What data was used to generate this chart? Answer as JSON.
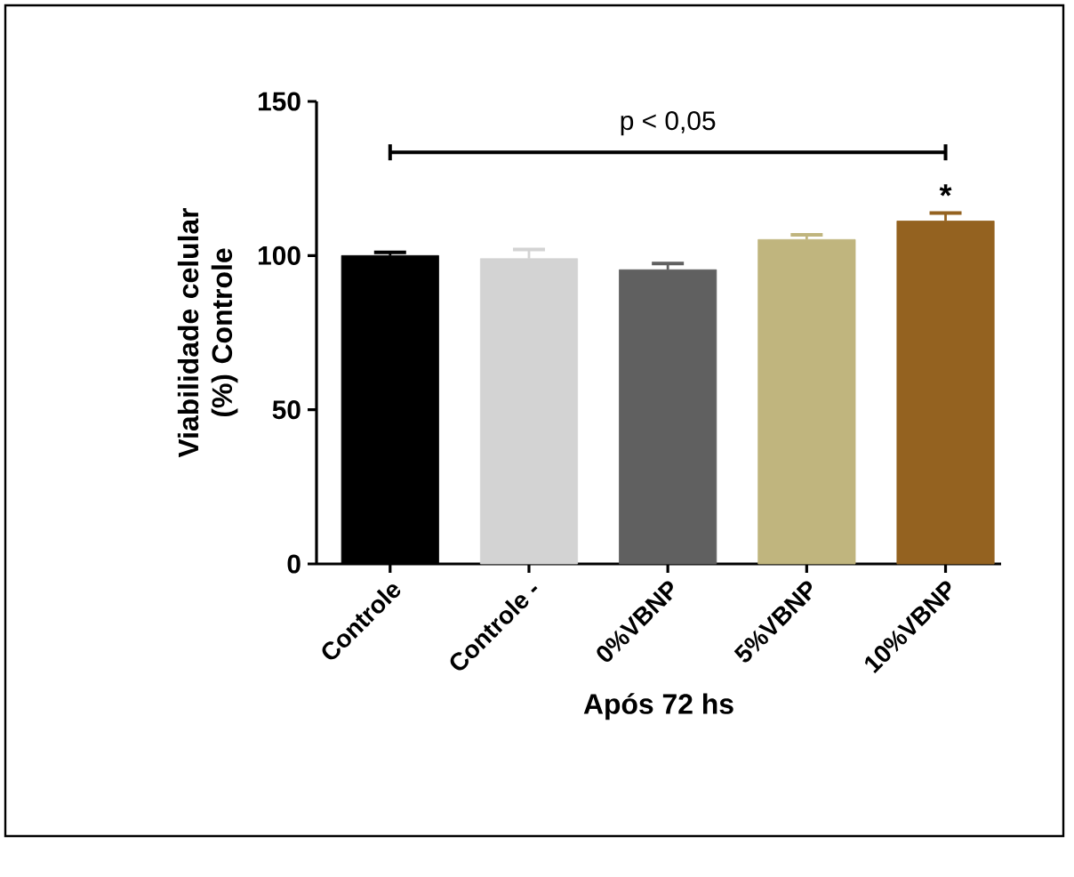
{
  "chart_data": {
    "type": "bar",
    "xlabel": "Após 72 hs",
    "ylabel": "Viabilidade celular (%) Controle",
    "categories": [
      "Controle",
      "Controle -",
      "0%VBNP",
      "5%VBNP",
      "10%VBNP"
    ],
    "values": [
      100,
      99,
      95.4,
      105.2,
      111.2
    ],
    "errors": [
      1,
      3,
      2,
      1.5,
      2.6
    ],
    "colors": [
      "#000000",
      "#d3d3d3",
      "#606060",
      "#c0b57e",
      "#946220"
    ],
    "ylim": [
      0,
      150
    ],
    "yticks": [
      0,
      50,
      100,
      150
    ],
    "annotations": [
      "p < 0,05",
      "*"
    ]
  }
}
